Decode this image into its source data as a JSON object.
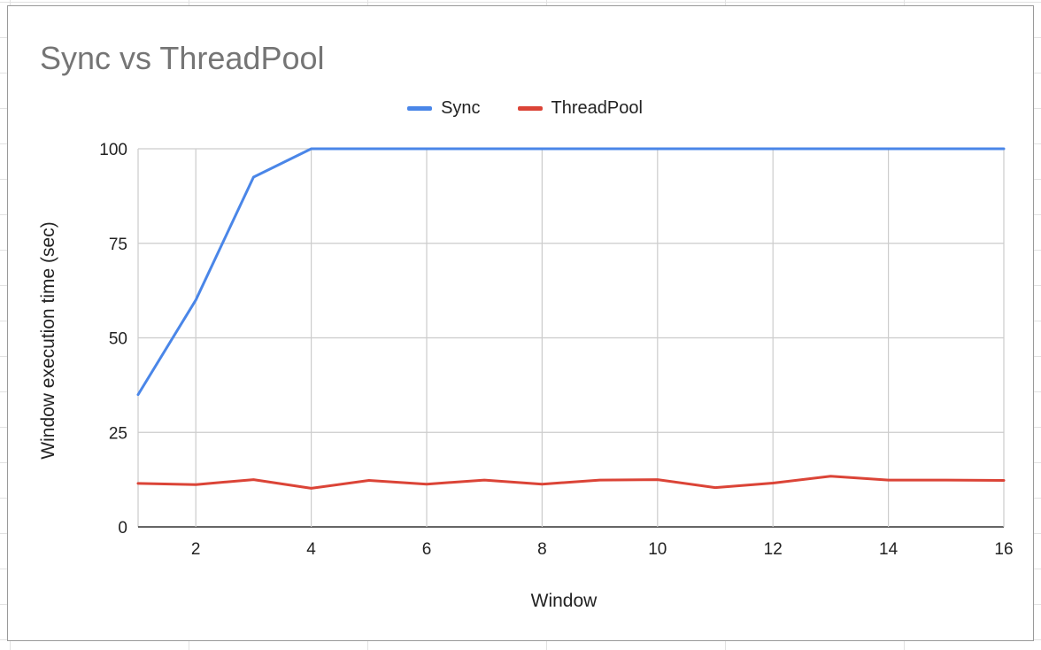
{
  "chart_data": {
    "type": "line",
    "title": "Sync vs ThreadPool",
    "xlabel": "Window",
    "ylabel": "Window execution time (sec)",
    "x": [
      1,
      2,
      3,
      4,
      5,
      6,
      7,
      8,
      9,
      10,
      11,
      12,
      13,
      14,
      15,
      16
    ],
    "xlim": [
      1,
      16
    ],
    "ylim": [
      0,
      100
    ],
    "xticks": [
      "2",
      "4",
      "6",
      "8",
      "10",
      "12",
      "14",
      "16"
    ],
    "yticks": [
      "0",
      "25",
      "50",
      "75",
      "100"
    ],
    "grid": true,
    "legend_position": "top",
    "series": [
      {
        "name": "Sync",
        "color": "#4a86e8",
        "values": [
          35,
          60,
          92.5,
          100,
          100,
          100,
          100,
          100,
          100,
          100,
          100,
          100,
          100,
          100,
          100,
          100
        ]
      },
      {
        "name": "ThreadPool",
        "color": "#db4437",
        "values": [
          11.5,
          11.2,
          12.5,
          10.2,
          12.3,
          11.3,
          12.4,
          11.3,
          12.4,
          12.5,
          10.4,
          11.6,
          13.4,
          12.4,
          12.4,
          12.3
        ]
      }
    ]
  }
}
